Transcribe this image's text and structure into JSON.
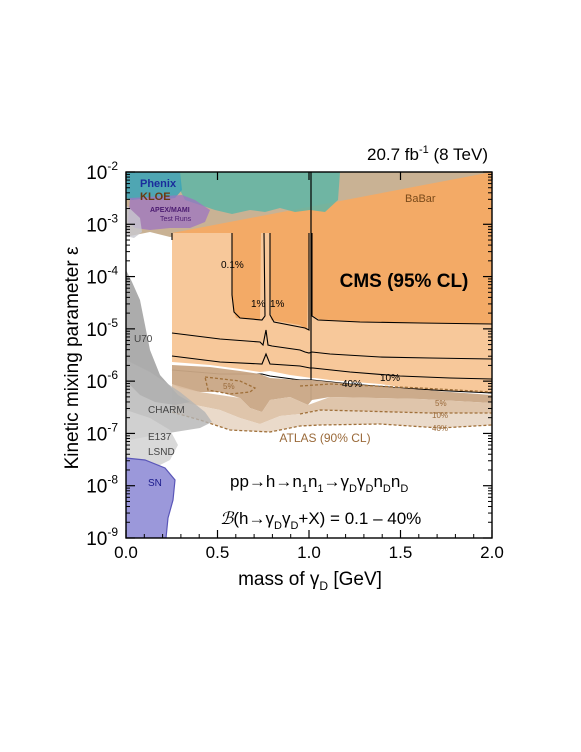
{
  "chart_data": {
    "type": "area",
    "lumi_label": {
      "main": "20.7 fb",
      "sup": "-1",
      "tail": " (8 TeV)"
    },
    "xlabel": {
      "main": "mass of γ",
      "sub": "D",
      "tail": " [GeV]"
    },
    "ylabel": "Kinetic mixing parameter ε",
    "xlim": [
      0.0,
      2.0
    ],
    "ylim_log10": [
      -9,
      -2
    ],
    "x_ticks": [
      "0.0",
      "0.5",
      "1.0",
      "1.5",
      "2.0"
    ],
    "y_ticks": [
      {
        "exp": -2,
        "base": "10",
        "sup": "-2"
      },
      {
        "exp": -3,
        "base": "10",
        "sup": "-3"
      },
      {
        "exp": -4,
        "base": "10",
        "sup": "-4"
      },
      {
        "exp": -5,
        "base": "10",
        "sup": "-5"
      },
      {
        "exp": -6,
        "base": "10",
        "sup": "-6"
      },
      {
        "exp": -7,
        "base": "10",
        "sup": "-7"
      },
      {
        "exp": -8,
        "base": "10",
        "sup": "-8"
      },
      {
        "exp": -9,
        "base": "10",
        "sup": "-9"
      }
    ],
    "experiment_labels": {
      "cms": "CMS (95% CL)",
      "atlas": "ATLAS (90% CL)",
      "babar": "BaBar",
      "phenix": "Phenix",
      "kloe": "KLOE",
      "apex_line1": "APEX/MAMI",
      "apex_line2": "Test Runs",
      "u70": "U70",
      "charm": "CHARM",
      "e137": "E137",
      "lsnd": "LSND",
      "sn": "SN"
    },
    "contour_labels": {
      "cms_01": "0.1%",
      "cms_1a": "1%",
      "cms_1b": "1%",
      "cms_10": "10%",
      "cms_40": "40%",
      "atlas_5a": "5%",
      "atlas_5b": "5%",
      "atlas_10": "10%",
      "atlas_40": "40%"
    },
    "process_label": "pp→h→n₁n₁→γDγDnDnD",
    "process_parts": {
      "pre": "pp→h→n",
      "s1": "1",
      "m1": "n",
      "s2": "1",
      "m2": "→γ",
      "s3": "D",
      "m3": "γ",
      "s4": "D",
      "m4": "n",
      "s5": "D",
      "m5": "n",
      "s6": "D"
    },
    "branching_parts": {
      "b": "ℬ",
      "pre": "(h→γ",
      "s1": "D",
      "m1": "γ",
      "s2": "D",
      "post": "+X) = 0.1 – 40%"
    },
    "series": [
      {
        "name": "BaBar",
        "color": "#b89a74",
        "x": [
          0.02,
          2.0
        ],
        "y_log10_lower": [
          -3.25,
          -3.25
        ],
        "y_log10_upper": [
          -2,
          -2
        ]
      },
      {
        "name": "CMS (95% CL)",
        "color": "#f5b878",
        "contours": {
          "0.1%": {
            "x": [
              0.25,
              0.57,
              0.74,
              0.8,
              0.96,
              1.02,
              2.0
            ],
            "y_log10": [
              -3.2,
              -4.9,
              -5.3,
              -3.3,
              -5.4,
              -2.0,
              -5.4
            ]
          },
          "1%": {
            "x": [
              0.25,
              0.75,
              0.8,
              0.98,
              1.02,
              2.0
            ],
            "y_log10": [
              -5.2,
              -5.65,
              -4.6,
              -5.7,
              -2.0,
              -5.65
            ]
          },
          "10%": {
            "x": [
              0.25,
              0.75,
              0.78,
              0.8,
              1.0,
              1.02,
              2.0
            ],
            "y_log10": [
              -5.8,
              -5.95,
              -5.7,
              -5.95,
              -6.0,
              -2.0,
              -5.95
            ]
          },
          "40%": {
            "x": [
              0.25,
              0.78,
              1.0,
              2.0
            ],
            "y_log10": [
              -6.05,
              -6.15,
              -6.2,
              -6.2
            ]
          }
        }
      },
      {
        "name": "ATLAS (90% CL)",
        "color": "#c9a07a",
        "contours": {
          "5%": {
            "x": [
              0.25,
              0.75,
              1.0,
              2.0
            ],
            "y_log10": [
              -6.4,
              -6.7,
              -6.6,
              -6.55
            ]
          },
          "10%": {
            "x": [
              0.25,
              0.75,
              1.0,
              2.0
            ],
            "y_log10": [
              -6.55,
              -6.8,
              -6.8,
              -6.7
            ]
          },
          "40%": {
            "x": [
              0.25,
              0.75,
              1.0,
              2.0
            ],
            "y_log10": [
              -6.65,
              -7.1,
              -6.95,
              -6.85
            ]
          }
        }
      },
      {
        "name": "Phenix",
        "color": "#3fa9a0",
        "x": [
          0.01,
          0.09
        ],
        "y_log10_lower": [
          -2.9,
          -2.75
        ]
      },
      {
        "name": "KLOE",
        "color": "#5a9a8a",
        "x": [
          0.02,
          1.0
        ],
        "y_log10_lower": [
          -3.0,
          -2.9
        ]
      },
      {
        "name": "APEX/MAMI Test Runs",
        "color": "#7a4aa0",
        "x": [
          0.02,
          0.3
        ],
        "y_log10_lower": [
          -3.3,
          -3.2
        ]
      },
      {
        "name": "U70",
        "color": "#9a9a9a",
        "x": [
          0.0,
          0.1
        ],
        "y_log10": [
          -4.0,
          -5.5
        ]
      },
      {
        "name": "CHARM",
        "color": "#b0b0b0",
        "x": [
          0.0,
          0.4
        ],
        "y_log10": [
          -6.0,
          -7.5
        ]
      },
      {
        "name": "E137",
        "color": "#d0d0d0",
        "x": [
          0.0,
          0.2
        ],
        "y_log10": [
          -7.0,
          -8.3
        ]
      },
      {
        "name": "LSND",
        "color": "#d8d8d8",
        "x": [
          0.0,
          0.15
        ],
        "y_log10": [
          -7.0,
          -8.3
        ]
      },
      {
        "name": "SN",
        "color": "#9a97d8",
        "x": [
          0.0,
          0.25
        ],
        "y_log10": [
          -7.8,
          -9.0
        ]
      }
    ]
  }
}
